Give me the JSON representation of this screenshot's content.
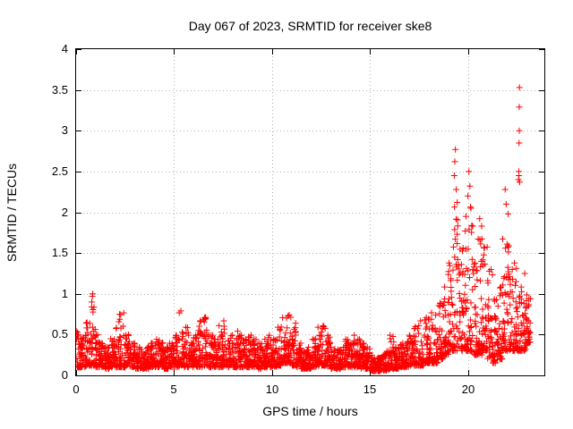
{
  "figure": {
    "background_color": "#ffffff",
    "axis_color": "#000000",
    "grid_color": "#b0b0b0"
  },
  "chart_data": {
    "type": "scatter",
    "title": "Day 067 of 2023, SRMTID for receiver ske8",
    "xlabel": "GPS time / hours",
    "ylabel": "SRMTID / TECUs",
    "xlim": [
      0,
      23.9
    ],
    "ylim": [
      0,
      4
    ],
    "xticks": [
      0,
      5,
      10,
      15,
      20
    ],
    "xtick_labels": [
      "0",
      "5",
      "10",
      "15",
      "20"
    ],
    "yticks": [
      0,
      0.5,
      1,
      1.5,
      2,
      2.5,
      3,
      3.5,
      4
    ],
    "ytick_labels": [
      "0",
      "0.5",
      "1",
      "1.5",
      "2",
      "2.5",
      "3",
      "3.5",
      "4"
    ],
    "grid": true,
    "legend": "none",
    "marker": {
      "glyph": "plus",
      "color": "#ff0000",
      "size": 7
    },
    "grid_color": "#b0b0b0",
    "axis_color": "#000000",
    "data_t_end": 23.2,
    "samples_per_hour": 120,
    "envelope_bins": [
      [
        0.0,
        0.1,
        0.55
      ],
      [
        0.25,
        0.1,
        0.5
      ],
      [
        0.5,
        0.12,
        0.65
      ],
      [
        0.75,
        0.12,
        0.85
      ],
      [
        1.0,
        0.1,
        0.5
      ],
      [
        1.25,
        0.1,
        0.4
      ],
      [
        1.5,
        0.08,
        0.35
      ],
      [
        1.75,
        0.1,
        0.45
      ],
      [
        2.0,
        0.1,
        0.7
      ],
      [
        2.25,
        0.1,
        0.78
      ],
      [
        2.5,
        0.1,
        0.5
      ],
      [
        2.75,
        0.1,
        0.4
      ],
      [
        3.0,
        0.08,
        0.35
      ],
      [
        3.25,
        0.08,
        0.32
      ],
      [
        3.5,
        0.08,
        0.35
      ],
      [
        3.75,
        0.1,
        0.4
      ],
      [
        4.0,
        0.1,
        0.45
      ],
      [
        4.25,
        0.1,
        0.4
      ],
      [
        4.5,
        0.08,
        0.35
      ],
      [
        4.75,
        0.1,
        0.4
      ],
      [
        5.0,
        0.1,
        0.5
      ],
      [
        5.25,
        0.12,
        0.78
      ],
      [
        5.5,
        0.1,
        0.6
      ],
      [
        5.75,
        0.1,
        0.4
      ],
      [
        6.0,
        0.1,
        0.5
      ],
      [
        6.25,
        0.1,
        0.68
      ],
      [
        6.5,
        0.12,
        0.72
      ],
      [
        6.75,
        0.1,
        0.5
      ],
      [
        7.0,
        0.1,
        0.45
      ],
      [
        7.25,
        0.1,
        0.62
      ],
      [
        7.5,
        0.12,
        0.68
      ],
      [
        7.75,
        0.1,
        0.5
      ],
      [
        8.0,
        0.1,
        0.55
      ],
      [
        8.25,
        0.1,
        0.5
      ],
      [
        8.5,
        0.1,
        0.45
      ],
      [
        8.75,
        0.1,
        0.5
      ],
      [
        9.0,
        0.1,
        0.45
      ],
      [
        9.25,
        0.08,
        0.4
      ],
      [
        9.5,
        0.1,
        0.45
      ],
      [
        9.75,
        0.1,
        0.5
      ],
      [
        10.0,
        0.1,
        0.45
      ],
      [
        10.25,
        0.12,
        0.6
      ],
      [
        10.5,
        0.15,
        0.72
      ],
      [
        10.75,
        0.15,
        0.75
      ],
      [
        11.0,
        0.12,
        0.65
      ],
      [
        11.25,
        0.1,
        0.4
      ],
      [
        11.5,
        0.08,
        0.3
      ],
      [
        11.75,
        0.08,
        0.35
      ],
      [
        12.0,
        0.1,
        0.45
      ],
      [
        12.25,
        0.12,
        0.6
      ],
      [
        12.5,
        0.12,
        0.62
      ],
      [
        12.75,
        0.1,
        0.5
      ],
      [
        13.0,
        0.08,
        0.35
      ],
      [
        13.25,
        0.08,
        0.32
      ],
      [
        13.5,
        0.1,
        0.35
      ],
      [
        13.75,
        0.1,
        0.45
      ],
      [
        14.0,
        0.1,
        0.5
      ],
      [
        14.25,
        0.1,
        0.45
      ],
      [
        14.5,
        0.08,
        0.4
      ],
      [
        14.75,
        0.08,
        0.35
      ],
      [
        15.0,
        0.05,
        0.25
      ],
      [
        15.25,
        0.05,
        0.22
      ],
      [
        15.5,
        0.05,
        0.25
      ],
      [
        15.75,
        0.06,
        0.3
      ],
      [
        16.0,
        0.08,
        0.5
      ],
      [
        16.25,
        0.08,
        0.35
      ],
      [
        16.5,
        0.1,
        0.4
      ],
      [
        16.75,
        0.1,
        0.42
      ],
      [
        17.0,
        0.12,
        0.5
      ],
      [
        17.25,
        0.12,
        0.62
      ],
      [
        17.5,
        0.12,
        0.68
      ],
      [
        17.75,
        0.15,
        0.72
      ],
      [
        18.0,
        0.15,
        0.78
      ],
      [
        18.25,
        0.15,
        0.75
      ],
      [
        18.5,
        0.2,
        0.9
      ],
      [
        18.75,
        0.25,
        1.1
      ],
      [
        19.0,
        0.3,
        1.4
      ],
      [
        19.25,
        0.3,
        2.1
      ],
      [
        19.5,
        0.3,
        1.55
      ],
      [
        19.75,
        0.3,
        1.8
      ],
      [
        20.0,
        0.3,
        2.1
      ],
      [
        20.25,
        0.25,
        1.4
      ],
      [
        20.5,
        0.25,
        1.7
      ],
      [
        20.75,
        0.3,
        1.6
      ],
      [
        21.0,
        0.2,
        1.3
      ],
      [
        21.25,
        0.15,
        0.95
      ],
      [
        21.5,
        0.2,
        1.1
      ],
      [
        21.75,
        0.3,
        1.7
      ],
      [
        22.0,
        0.3,
        1.6
      ],
      [
        22.25,
        0.3,
        1.4
      ],
      [
        22.5,
        0.3,
        1.1
      ],
      [
        22.75,
        0.3,
        1.0
      ],
      [
        23.0,
        0.4,
        0.95
      ]
    ],
    "outliers": [
      [
        0.8,
        0.9
      ],
      [
        0.83,
        0.97
      ],
      [
        0.85,
        1.0
      ],
      [
        2.22,
        0.75
      ],
      [
        5.35,
        0.79
      ],
      [
        10.82,
        0.73
      ],
      [
        19.3,
        2.45
      ],
      [
        19.33,
        2.62
      ],
      [
        19.36,
        2.77
      ],
      [
        19.4,
        2.28
      ],
      [
        19.45,
        2.12
      ],
      [
        19.9,
        1.95
      ],
      [
        20.0,
        2.2
      ],
      [
        20.05,
        2.5
      ],
      [
        20.1,
        2.32
      ],
      [
        20.15,
        2.05
      ],
      [
        20.6,
        1.92
      ],
      [
        20.7,
        1.83
      ],
      [
        21.9,
        2.28
      ],
      [
        21.95,
        2.1
      ],
      [
        22.05,
        1.98
      ],
      [
        22.58,
        2.4
      ],
      [
        22.6,
        2.45
      ],
      [
        22.6,
        2.5
      ],
      [
        22.61,
        2.85
      ],
      [
        22.62,
        3.0
      ],
      [
        22.62,
        3.29
      ],
      [
        22.63,
        3.53
      ],
      [
        22.64,
        2.37
      ],
      [
        22.9,
        1.25
      ]
    ]
  }
}
